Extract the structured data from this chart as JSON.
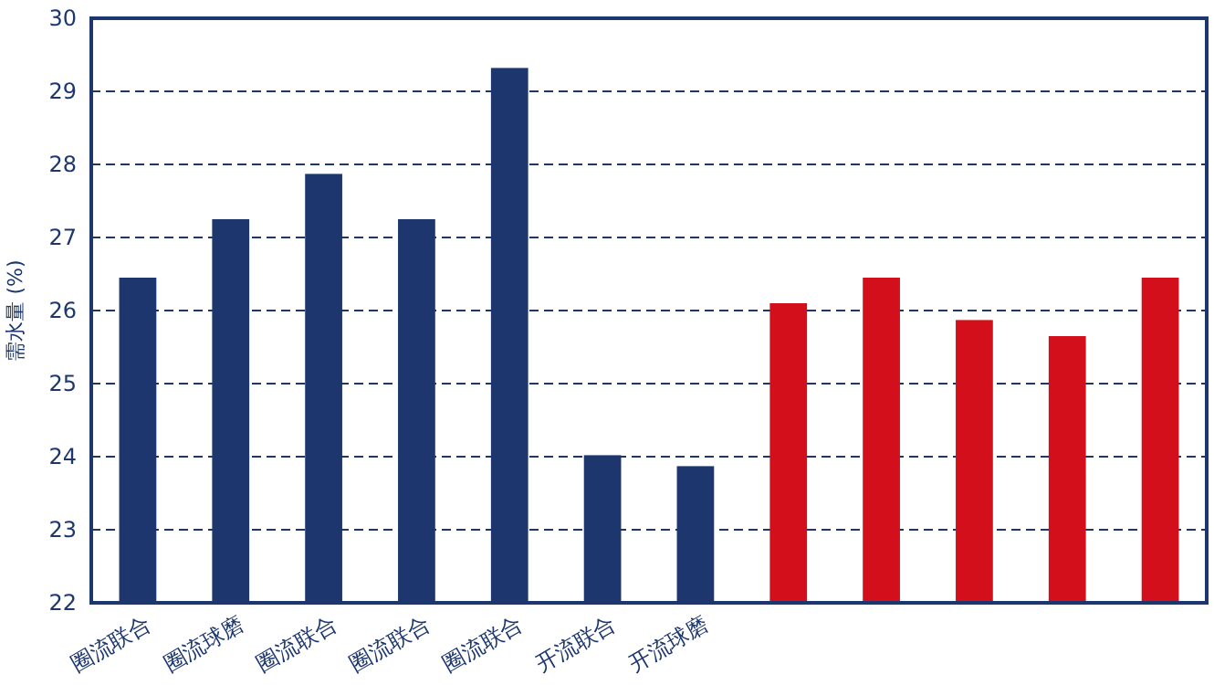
{
  "chart_data": {
    "type": "bar",
    "ylabel": "需水量 (%)",
    "categories": [
      "圈流联合",
      "圈流球磨",
      "圈流联合",
      "圈流联合",
      "圈流联合",
      "开流联合",
      "开流球磨",
      null,
      null,
      null,
      null,
      null
    ],
    "values": [
      26.45,
      27.25,
      27.87,
      27.25,
      29.32,
      24.02,
      23.87,
      26.1,
      26.45,
      25.87,
      25.65,
      26.45
    ],
    "colors": [
      "#1d376e",
      "#1d376e",
      "#1d376e",
      "#1d376e",
      "#1d376e",
      "#1d376e",
      "#1d376e",
      "#d40f1c",
      "#d40f1c",
      "#d40f1c",
      "#d40f1c",
      "#d40f1c"
    ],
    "ylim": [
      22,
      30
    ],
    "yticks": [
      22,
      23,
      24,
      25,
      26,
      27,
      28,
      29,
      30
    ],
    "grid": "y"
  }
}
